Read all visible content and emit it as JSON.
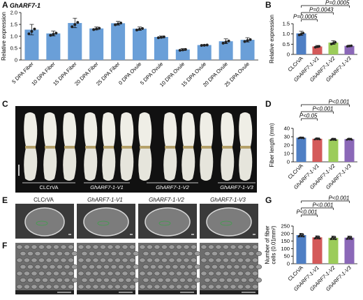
{
  "panels": {
    "A": "A",
    "B": "B",
    "C": "C",
    "D": "D",
    "E": "E",
    "F": "F",
    "G": "G"
  },
  "panelA": {
    "gene": "GhARF7-1",
    "ylabel": "Relative expression",
    "yticks": [
      "0",
      "0.5",
      "1.0",
      "1.5",
      "2.0"
    ],
    "color": "#6a9fd8"
  },
  "panelB": {
    "ylabel": "Relative expression",
    "yticks": [
      "0",
      "0.5",
      "1.0",
      "1.5"
    ],
    "pvals": [
      "P=0.0005",
      "P=0.0043",
      "P=0.0005"
    ]
  },
  "panelD": {
    "ylabel": "Fiber length (mm)",
    "yticks": [
      "0",
      "10",
      "20",
      "30",
      "40"
    ],
    "pvals": [
      "P<0.001",
      "P<0.001",
      "P<0.05"
    ]
  },
  "panelG": {
    "ylabel": "Number of fiber\ncells (0.01mm²)",
    "yticks": [
      "0",
      "50",
      "100",
      "150",
      "200",
      "250"
    ],
    "pvals": [
      "P<0.001",
      "P<0.001",
      "P<0.001"
    ]
  },
  "groups": [
    "CLCrVA",
    "GhARF7-1-V1",
    "GhARF7-1-V2",
    "GhARF7-1-V3"
  ],
  "group_colors": [
    "#4f7fc4",
    "#d45a5a",
    "#9ccc5a",
    "#8b68b8"
  ],
  "panelC": {
    "labels": [
      "CLCrVA",
      "GhARF7-1-V1",
      "GhARF7-1-V2",
      "GhARF7-1-V3"
    ]
  },
  "panelE": {
    "titles": [
      "CLCrVA",
      "GhARF7-1-V1",
      "GhARF7-1-V2",
      "GhARF7-1-V3"
    ]
  },
  "chart_data": [
    {
      "panel": "A",
      "type": "bar",
      "title": "GhARF7-1",
      "ylabel": "Relative expression",
      "ylim": [
        0,
        2.0
      ],
      "categories": [
        "5 DPA Fiber",
        "10 DPA Fiber",
        "15 DPA Fiber",
        "20 DPA Fiber",
        "25 DPA Fiber",
        "0 DPA Ovule",
        "5 DPA Ovule",
        "10 DPA Ovule",
        "15 DPA Ovule",
        "20 DPA Ovule",
        "25 DPA Ovule"
      ],
      "values": [
        1.28,
        1.12,
        1.56,
        1.33,
        1.55,
        1.32,
        0.97,
        0.44,
        0.63,
        0.79,
        0.85
      ],
      "errors": [
        0.22,
        0.1,
        0.2,
        0.06,
        0.08,
        0.07,
        0.04,
        0.04,
        0.02,
        0.1,
        0.09
      ]
    },
    {
      "panel": "B",
      "type": "bar",
      "ylabel": "Relative expression",
      "ylim": [
        0,
        1.5
      ],
      "categories": [
        "CLCrVA",
        "GhARF7-1-V1",
        "GhARF7-1-V2",
        "GhARF7-1-V3"
      ],
      "values": [
        1.03,
        0.39,
        0.58,
        0.42
      ],
      "errors": [
        0.1,
        0.05,
        0.09,
        0.03
      ],
      "annotations": [
        "P=0.0005",
        "P=0.0043",
        "P=0.0005"
      ]
    },
    {
      "panel": "D",
      "type": "bar",
      "ylabel": "Fiber length (mm)",
      "ylim": [
        0,
        40
      ],
      "categories": [
        "CLCrVA",
        "GhARF7-1-V1",
        "GhARF7-1-V2",
        "GhARF7-1-V3"
      ],
      "values": [
        28.8,
        27.6,
        27.0,
        27.2
      ],
      "errors": [
        0.8,
        1.0,
        1.2,
        1.0
      ],
      "annotations": [
        "P<0.001",
        "P<0.001",
        "P<0.05"
      ]
    },
    {
      "panel": "G",
      "type": "bar",
      "ylabel": "Number of fiber cells (0.01mm²)",
      "ylim": [
        0,
        250
      ],
      "categories": [
        "CLCrVA",
        "GhARF7-1-V1",
        "GhARF7-1-V2",
        "GhARF7-1-V3"
      ],
      "values": [
        190,
        175,
        172,
        173
      ],
      "errors": [
        12,
        10,
        12,
        11
      ],
      "annotations": [
        "P<0.001",
        "P<0.001",
        "P<0.001"
      ]
    }
  ]
}
